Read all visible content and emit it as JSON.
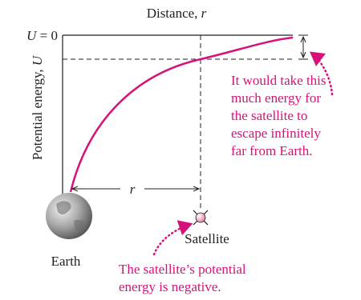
{
  "axes": {
    "x_label": "Distance,",
    "x_symbol": "r",
    "y_label": "Potential energy,",
    "y_symbol": "U",
    "zero_symbol": "U",
    "zero_text": "= 0"
  },
  "distance_label": "r",
  "escape_note": [
    "It would take this",
    "much energy for",
    "the satellite to",
    "escape infinitely",
    "far from Earth."
  ],
  "satellite_label": "Satellite",
  "earth_label": "Earth",
  "negative_note": [
    "The satellite’s potential",
    "energy is negative."
  ]
}
